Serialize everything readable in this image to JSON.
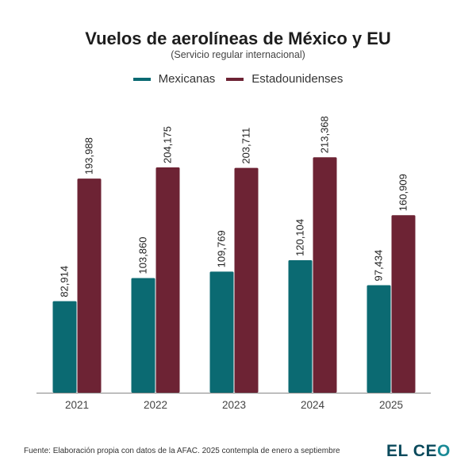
{
  "chart_data": {
    "type": "bar",
    "title": "Vuelos de aerolíneas de México y EU",
    "subtitle": "(Servicio regular internacional)",
    "xlabel": "",
    "ylabel": "",
    "ylim": [
      0,
      220000
    ],
    "grid": false,
    "legend_position": "top-center",
    "categories": [
      "2021",
      "2022",
      "2023",
      "2024",
      "2025"
    ],
    "series": [
      {
        "name": "Mexicanas",
        "color": "#0b6a72",
        "values": [
          82914,
          103860,
          109769,
          120104,
          97434
        ],
        "labels": [
          "82,914",
          "103,860",
          "109,769",
          "120,104",
          "97,434"
        ]
      },
      {
        "name": "Estadounidenses",
        "color": "#6d2334",
        "values": [
          193988,
          204175,
          203711,
          213368,
          160909
        ],
        "labels": [
          "193,988",
          "204,175",
          "203,711",
          "213,368",
          "160,909"
        ]
      }
    ]
  },
  "footer": {
    "source": "Fuente: Elaboración propia con datos de la AFAC. 2025 contempla de enero a septiembre"
  },
  "logo": {
    "text_main": "EL CE",
    "text_o": "O"
  }
}
